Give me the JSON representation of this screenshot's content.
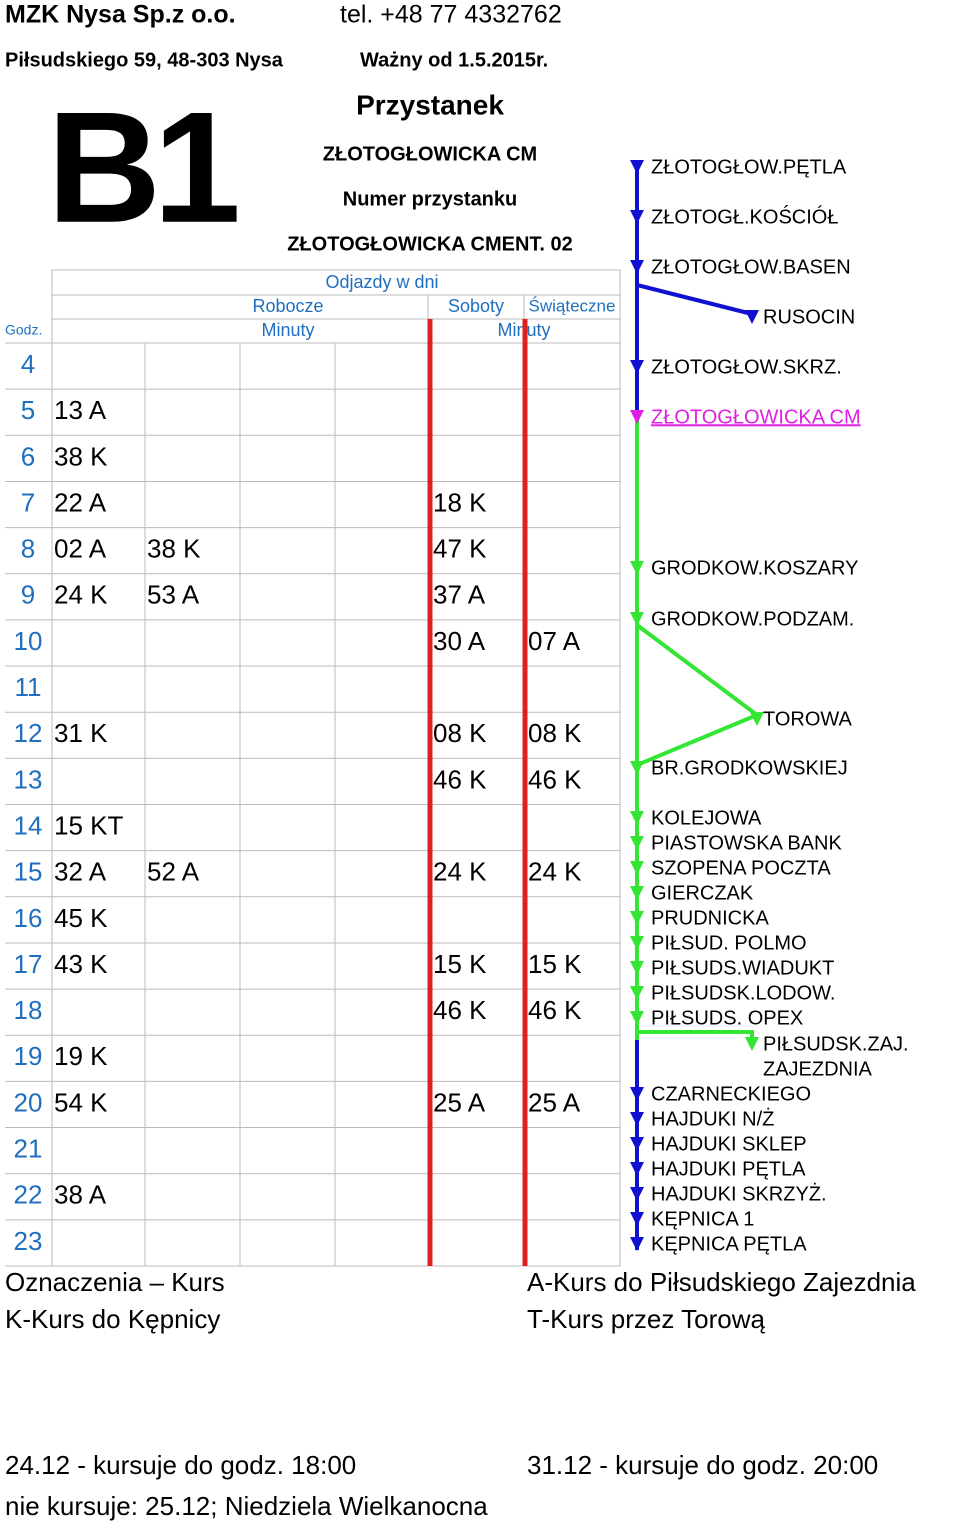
{
  "header": {
    "company": "MZK Nysa Sp.z o.o.",
    "phone": "tel. +48 77 4332762",
    "address": "Piłsudskiego 59, 48-303 Nysa",
    "valid_from": "Ważny od 1.5.2015r.",
    "line": "B1",
    "stop_heading": "Przystanek",
    "stop_name": "ZŁOTOGŁOWICKA CM",
    "stop_number_heading": "Numer przystanku",
    "stop_number": "ZŁOTOGŁOWICKA CMENT. 02"
  },
  "table": {
    "departures_heading": "Odjazdy w dni",
    "weekdays": "Robocze",
    "saturdays": "Soboty",
    "holidays": "Świąteczne",
    "hour_heading": "Godz.",
    "minutes_weekdays": "Minuty",
    "minutes_weekend": "Minuty",
    "rows": [
      {
        "hour": 4,
        "weekdays": [],
        "saturdays": [],
        "holidays": []
      },
      {
        "hour": 5,
        "weekdays": [
          "13 A"
        ],
        "saturdays": [],
        "holidays": []
      },
      {
        "hour": 6,
        "weekdays": [
          "38 K"
        ],
        "saturdays": [],
        "holidays": []
      },
      {
        "hour": 7,
        "weekdays": [
          "22 A"
        ],
        "saturdays": [
          "18 K"
        ],
        "holidays": []
      },
      {
        "hour": 8,
        "weekdays": [
          "02 A",
          "38 K"
        ],
        "saturdays": [
          "47 K"
        ],
        "holidays": []
      },
      {
        "hour": 9,
        "weekdays": [
          "24 K",
          "53 A"
        ],
        "saturdays": [
          "37 A"
        ],
        "holidays": []
      },
      {
        "hour": 10,
        "weekdays": [],
        "saturdays": [
          "30 A"
        ],
        "holidays": [
          "07 A"
        ]
      },
      {
        "hour": 11,
        "weekdays": [],
        "saturdays": [],
        "holidays": []
      },
      {
        "hour": 12,
        "weekdays": [
          "31 K"
        ],
        "saturdays": [
          "08 K"
        ],
        "holidays": [
          "08 K"
        ]
      },
      {
        "hour": 13,
        "weekdays": [],
        "saturdays": [
          "46 K"
        ],
        "holidays": [
          "46 K"
        ]
      },
      {
        "hour": 14,
        "weekdays": [
          "15 KT"
        ],
        "saturdays": [],
        "holidays": []
      },
      {
        "hour": 15,
        "weekdays": [
          "32 A",
          "52 A"
        ],
        "saturdays": [
          "24 K"
        ],
        "holidays": [
          "24 K"
        ]
      },
      {
        "hour": 16,
        "weekdays": [
          "45 K"
        ],
        "saturdays": [],
        "holidays": []
      },
      {
        "hour": 17,
        "weekdays": [
          "43 K"
        ],
        "saturdays": [
          "15 K"
        ],
        "holidays": [
          "15 K"
        ]
      },
      {
        "hour": 18,
        "weekdays": [],
        "saturdays": [
          "46 K"
        ],
        "holidays": [
          "46 K"
        ]
      },
      {
        "hour": 19,
        "weekdays": [
          "19 K"
        ],
        "saturdays": [],
        "holidays": []
      },
      {
        "hour": 20,
        "weekdays": [
          "54 K"
        ],
        "saturdays": [
          "25 A"
        ],
        "holidays": [
          "25 A"
        ]
      },
      {
        "hour": 21,
        "weekdays": [],
        "saturdays": [],
        "holidays": []
      },
      {
        "hour": 22,
        "weekdays": [
          "38 A"
        ],
        "saturdays": [],
        "holidays": []
      },
      {
        "hour": 23,
        "weekdays": [],
        "saturdays": [],
        "holidays": []
      }
    ]
  },
  "legend": {
    "heading": "Oznaczenia – Kurs",
    "items": [
      "K-Kurs do Kępnicy",
      "A-Kurs do Piłsudskiego Zajezdnia",
      "T-Kurs przez Torową"
    ]
  },
  "notes": [
    "24.12 - kursuje do godz. 18:00",
    "31.12 - kursuje do godz. 20:00",
    "nie kursuje: 25.12; Niedziela Wielkanocna"
  ],
  "route": {
    "stops": [
      "ZŁOTOGŁOW.PĘTLA",
      "ZŁOTOGŁ.KOŚCIÓŁ",
      "ZŁOTOGŁOW.BASEN",
      "RUSOCIN",
      "ZŁOTOGŁOW.SKRZ.",
      "ZŁOTOGŁOWICKA CM",
      "GRODKOW.KOSZARY",
      "GRODKOW.PODZAM.",
      "TOROWA",
      "BR.GRODKOWSKIEJ",
      "KOLEJOWA",
      "PIASTOWSKA BANK",
      "SZOPENA POCZTA",
      "GIERCZAK",
      "PRUDNICKA",
      "PIŁSUD. POLMO",
      "PIŁSUDS.WIADUKT",
      "PIŁSUDSK.LODOW.",
      "PIŁSUDS. OPEX",
      "PIŁSUDSK.ZAJ.",
      "ZAJEZDNIA",
      "CZARNECKIEGO",
      "HAJDUKI N/Ż",
      "HAJDUKI SKLEP",
      "HAJDUKI PĘTLA",
      "HAJDUKI SKRZYŻ.",
      "KĘPNICA 1",
      "KĘPNICA PĘTLA"
    ]
  }
}
